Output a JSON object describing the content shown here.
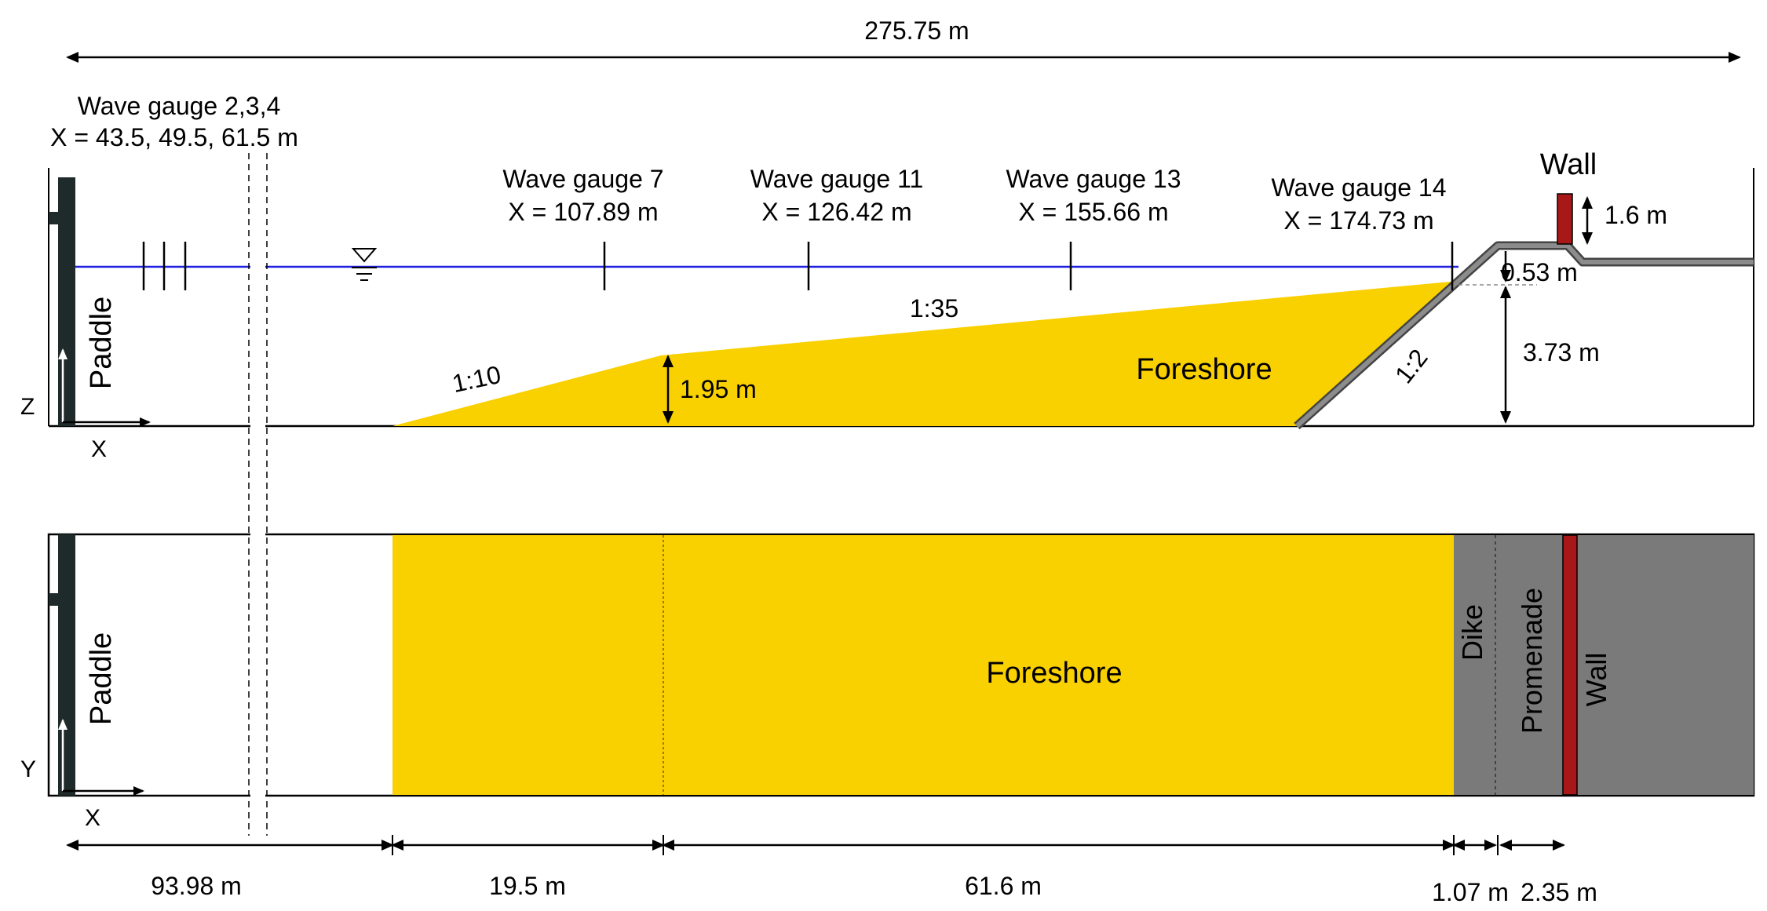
{
  "total_length": "275.75 m",
  "gauges": [
    {
      "name": "Wave gauge 2,3,4",
      "pos": "X = 43.5, 49.5, 61.5 m"
    },
    {
      "name": "Wave gauge 7",
      "pos": "X = 107.89 m"
    },
    {
      "name": "Wave gauge 11",
      "pos": "X = 126.42 m"
    },
    {
      "name": "Wave gauge 13",
      "pos": "X = 155.66 m"
    },
    {
      "name": "Wave gauge 14",
      "pos": "X = 174.73 m"
    }
  ],
  "side_view": {
    "wall_label": "Wall",
    "wall_height": "1.6 m",
    "freeboard": "0.53 m",
    "water_depth": "3.73 m",
    "step_height": "1.95 m",
    "slope_foreshore": "1:35",
    "slope_toe": "1:10",
    "slope_dike": "1:2",
    "foreshore_label": "Foreshore",
    "paddle_label": "Paddle",
    "axis_z": "Z",
    "axis_x": "X"
  },
  "plan_view": {
    "paddle_label": "Paddle",
    "foreshore_label": "Foreshore",
    "dike_label": "Dike",
    "promenade_label": "Promenade",
    "wall_label": "Wall",
    "axis_y": "Y",
    "axis_x": "X"
  },
  "bottom_dims": [
    "93.98 m",
    "19.5 m",
    "61.6 m",
    "1.07 m",
    "2.35 m"
  ],
  "colors": {
    "foreshore": "#f9d000",
    "water_line": "#1f1fe0",
    "dike": "#7a7a7a",
    "wall": "#a81818",
    "paddle": "#1f2b2a"
  }
}
